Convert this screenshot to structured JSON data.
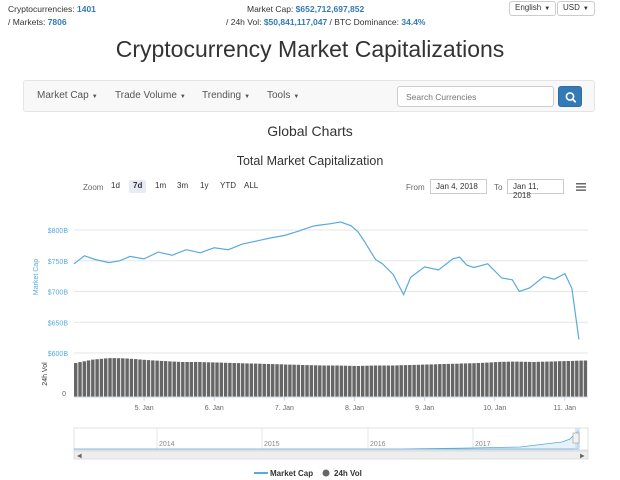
{
  "topbar": {
    "cryptocurrencies_label": "Cryptocurrencies:",
    "cryptocurrencies_value": "1401",
    "markets_label": "/ Markets:",
    "markets_value": "7806",
    "market_cap_label": "Market Cap:",
    "market_cap_value": "$652,712,697,852",
    "vol_label": "/ 24h Vol:",
    "vol_value": "$50,841,117,047",
    "dominance_label": "/ BTC Dominance:",
    "dominance_value": "34.4%",
    "language": "English",
    "currency": "USD"
  },
  "page_title": "Cryptocurrency Market Capitalizations",
  "navbar": {
    "items": [
      "Market Cap",
      "Trade Volume",
      "Trending",
      "Tools"
    ],
    "search_placeholder": "Search Currencies"
  },
  "section_title": "Global Charts",
  "chart_title": "Total Market Capitalization",
  "zoom": {
    "label": "Zoom",
    "options": [
      "1d",
      "7d",
      "1m",
      "3m",
      "1y",
      "YTD",
      "ALL"
    ],
    "selected": "7d"
  },
  "range": {
    "from_label": "From",
    "from_value": "Jan 4, 2018",
    "to_label": "To",
    "to_value": "Jan 11, 2018"
  },
  "legend": [
    "Market Cap",
    "24h Vol"
  ],
  "colors": {
    "market_cap": "#5aaadf",
    "volume": "#666666",
    "accent": "#337ab7"
  },
  "chart_data": {
    "type": "line",
    "title": "Total Market Capitalization",
    "x_tick_labels": [
      "5. Jan",
      "6. Jan",
      "7. Jan",
      "8. Jan",
      "9. Jan",
      "10. Jan",
      "11. Jan"
    ],
    "y_axis": {
      "label": "Market Cap",
      "ticks": [
        "$600B",
        "$650B",
        "$700B",
        "$750B",
        "$800B"
      ],
      "range": [
        600,
        830
      ],
      "unit": "B USD"
    },
    "vol_axis": {
      "label": "24h Vol",
      "ticks": [
        "0"
      ]
    },
    "navigator_labels": [
      "2014",
      "2015",
      "2016",
      "2017"
    ],
    "series": [
      {
        "name": "Market Cap",
        "x": [
          4.0,
          4.15,
          4.3,
          4.5,
          4.65,
          4.8,
          5.0,
          5.2,
          5.4,
          5.6,
          5.8,
          6.0,
          6.2,
          6.4,
          6.6,
          6.8,
          7.0,
          7.2,
          7.4,
          7.5,
          7.65,
          7.8,
          7.95,
          8.05,
          8.15,
          8.3,
          8.4,
          8.55,
          8.7,
          8.8,
          9.0,
          9.2,
          9.4,
          9.5,
          9.6,
          9.7,
          9.9,
          10.1,
          10.25,
          10.35,
          10.5,
          10.7,
          10.85,
          11.0,
          11.1,
          11.2
        ],
        "values": [
          745,
          758,
          752,
          747,
          750,
          757,
          753,
          764,
          759,
          768,
          763,
          771,
          768,
          777,
          782,
          787,
          791,
          798,
          806,
          808,
          810,
          813,
          807,
          797,
          780,
          752,
          745,
          728,
          695,
          723,
          740,
          735,
          753,
          756,
          743,
          739,
          745,
          722,
          719,
          700,
          706,
          724,
          720,
          729,
          705,
          622
        ]
      },
      {
        "name": "24h Vol",
        "values": [
          68,
          75,
          78,
          77,
          74,
          72,
          70,
          70,
          69,
          68,
          67,
          66,
          65,
          64,
          63,
          63,
          62,
          63,
          63,
          64,
          65,
          66,
          67,
          68,
          70,
          71,
          70,
          71,
          72,
          73
        ]
      }
    ]
  }
}
